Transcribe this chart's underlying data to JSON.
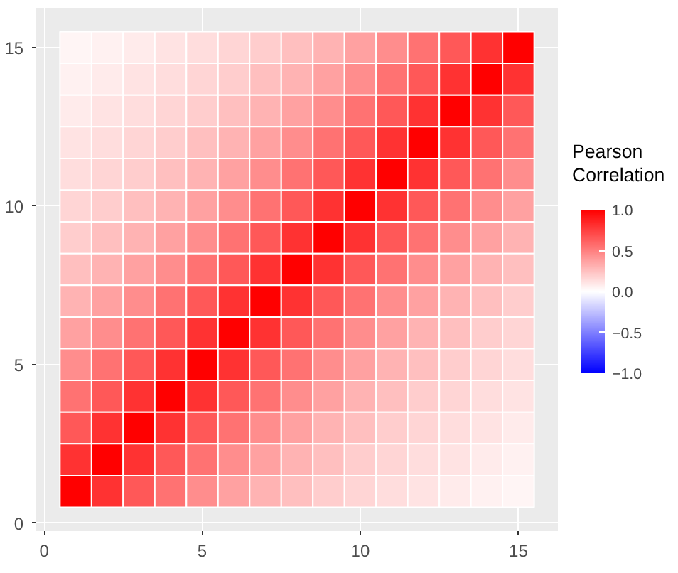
{
  "chart_data": {
    "type": "heatmap",
    "clabel": "Pearson Correlation",
    "x": [
      1,
      2,
      3,
      4,
      5,
      6,
      7,
      8,
      9,
      10,
      11,
      12,
      13,
      14,
      15
    ],
    "y": [
      15,
      14,
      13,
      12,
      11,
      10,
      9,
      8,
      7,
      6,
      5,
      4,
      3,
      2,
      1
    ],
    "cells": [
      [
        0.04,
        0.06,
        0.08,
        0.11,
        0.14,
        0.17,
        0.2,
        0.25,
        0.3,
        0.37,
        0.45,
        0.55,
        0.65,
        0.8,
        1.0
      ],
      [
        0.06,
        0.08,
        0.11,
        0.14,
        0.17,
        0.2,
        0.25,
        0.3,
        0.37,
        0.45,
        0.55,
        0.65,
        0.8,
        1.0,
        0.8
      ],
      [
        0.08,
        0.11,
        0.14,
        0.17,
        0.2,
        0.25,
        0.3,
        0.37,
        0.45,
        0.55,
        0.65,
        0.8,
        1.0,
        0.8,
        0.65
      ],
      [
        0.11,
        0.14,
        0.17,
        0.2,
        0.25,
        0.3,
        0.37,
        0.45,
        0.55,
        0.65,
        0.8,
        1.0,
        0.8,
        0.65,
        0.55
      ],
      [
        0.14,
        0.17,
        0.2,
        0.25,
        0.3,
        0.37,
        0.45,
        0.55,
        0.65,
        0.8,
        1.0,
        0.8,
        0.65,
        0.55,
        0.45
      ],
      [
        0.17,
        0.2,
        0.25,
        0.3,
        0.37,
        0.45,
        0.55,
        0.65,
        0.8,
        1.0,
        0.8,
        0.65,
        0.55,
        0.45,
        0.37
      ],
      [
        0.2,
        0.25,
        0.3,
        0.37,
        0.45,
        0.55,
        0.65,
        0.8,
        1.0,
        0.8,
        0.65,
        0.55,
        0.45,
        0.37,
        0.3
      ],
      [
        0.25,
        0.3,
        0.37,
        0.45,
        0.55,
        0.65,
        0.8,
        1.0,
        0.8,
        0.65,
        0.55,
        0.45,
        0.37,
        0.3,
        0.25
      ],
      [
        0.3,
        0.37,
        0.45,
        0.55,
        0.65,
        0.8,
        1.0,
        0.8,
        0.65,
        0.55,
        0.45,
        0.37,
        0.3,
        0.25,
        0.2
      ],
      [
        0.37,
        0.45,
        0.55,
        0.65,
        0.8,
        1.0,
        0.8,
        0.65,
        0.55,
        0.45,
        0.37,
        0.3,
        0.25,
        0.2,
        0.17
      ],
      [
        0.45,
        0.55,
        0.65,
        0.8,
        1.0,
        0.8,
        0.65,
        0.55,
        0.45,
        0.37,
        0.3,
        0.25,
        0.2,
        0.17,
        0.14
      ],
      [
        0.55,
        0.65,
        0.8,
        1.0,
        0.8,
        0.65,
        0.55,
        0.45,
        0.37,
        0.3,
        0.25,
        0.2,
        0.17,
        0.14,
        0.11
      ],
      [
        0.65,
        0.8,
        1.0,
        0.8,
        0.65,
        0.55,
        0.45,
        0.37,
        0.3,
        0.25,
        0.2,
        0.17,
        0.14,
        0.11,
        0.08
      ],
      [
        0.8,
        1.0,
        0.8,
        0.65,
        0.55,
        0.45,
        0.37,
        0.3,
        0.25,
        0.2,
        0.17,
        0.14,
        0.11,
        0.08,
        0.06
      ],
      [
        1.0,
        0.8,
        0.65,
        0.55,
        0.45,
        0.37,
        0.3,
        0.25,
        0.2,
        0.17,
        0.14,
        0.11,
        0.08,
        0.06,
        0.04
      ]
    ],
    "clim": [
      -1,
      1
    ],
    "cticks": [
      {
        "value": -1,
        "label": "−1.0"
      },
      {
        "value": -0.5,
        "label": "−0.5"
      },
      {
        "value": 0,
        "label": "0.0"
      },
      {
        "value": 0.5,
        "label": "0.5"
      },
      {
        "value": 1,
        "label": "1.0"
      }
    ],
    "xlim": [
      -0.25,
      16.25
    ],
    "ylim": [
      -0.25,
      16.25
    ],
    "xticks": [
      0,
      5,
      10,
      15
    ],
    "yticks": [
      0,
      5,
      10,
      15
    ],
    "grid": true
  }
}
